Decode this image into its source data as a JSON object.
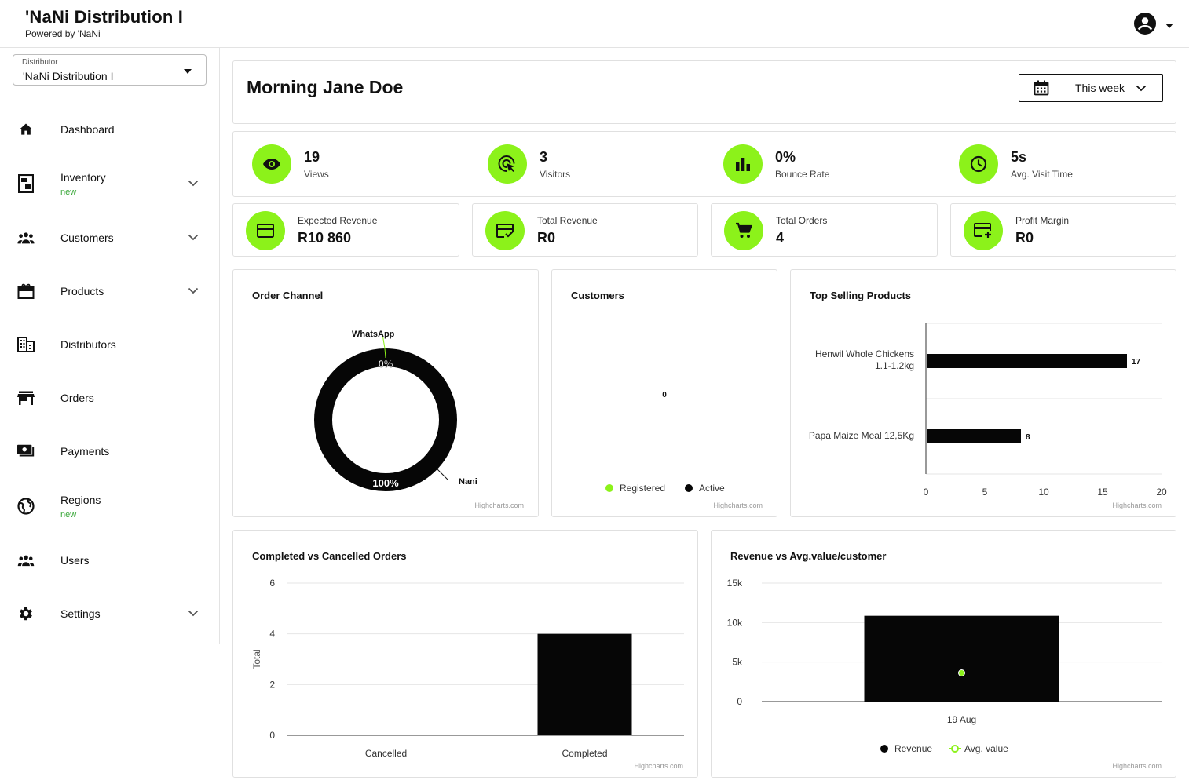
{
  "app": {
    "title": "'NaNi Distribution I",
    "subtitle": "Powered by 'NaNi"
  },
  "account": {
    "icon": "account-circle-icon"
  },
  "sidebar": {
    "distributor_label": "Distributor",
    "distributor_value": "'NaNi Distribution I",
    "items": [
      {
        "label": "Dashboard",
        "icon": "home-icon",
        "expandable": false,
        "badge": ""
      },
      {
        "label": "Inventory",
        "icon": "inventory-icon",
        "expandable": true,
        "badge": "new"
      },
      {
        "label": "Customers",
        "icon": "customers-icon",
        "expandable": true,
        "badge": ""
      },
      {
        "label": "Products",
        "icon": "products-icon",
        "expandable": true,
        "badge": ""
      },
      {
        "label": "Distributors",
        "icon": "building-icon",
        "expandable": false,
        "badge": ""
      },
      {
        "label": "Orders",
        "icon": "store-icon",
        "expandable": false,
        "badge": ""
      },
      {
        "label": "Payments",
        "icon": "payments-icon",
        "expandable": false,
        "badge": ""
      },
      {
        "label": "Regions",
        "icon": "globe-icon",
        "expandable": false,
        "badge": "new"
      },
      {
        "label": "Users",
        "icon": "users-icon",
        "expandable": false,
        "badge": ""
      },
      {
        "label": "Settings",
        "icon": "gear-icon",
        "expandable": true,
        "badge": ""
      }
    ]
  },
  "header": {
    "greeting": "Morning Jane Doe",
    "period": "This week"
  },
  "stats": [
    {
      "value": "19",
      "label": "Views",
      "icon": "eye-icon"
    },
    {
      "value": "3",
      "label": "Visitors",
      "icon": "cursor-click-icon"
    },
    {
      "value": "0%",
      "label": "Bounce Rate",
      "icon": "bar-chart-icon"
    },
    {
      "value": "5s",
      "label": "Avg. Visit Time",
      "icon": "clock-icon"
    }
  ],
  "kpis": [
    {
      "label": "Expected Revenue",
      "value": "R10 860",
      "icon": "credit-card-icon"
    },
    {
      "label": "Total Revenue",
      "value": "R0",
      "icon": "card-check-icon"
    },
    {
      "label": "Total Orders",
      "value": "4",
      "icon": "cart-icon"
    },
    {
      "label": "Profit Margin",
      "value": "R0",
      "icon": "card-plus-icon"
    }
  ],
  "credit": "Highcharts.com",
  "colors": {
    "accent": "#8cf21a",
    "bar": "#060606"
  },
  "chart_data": [
    {
      "id": "order_channel",
      "type": "pie",
      "title": "Order Channel",
      "slices": [
        {
          "name": "WhatsApp",
          "value": 0,
          "label": "0%"
        },
        {
          "name": "Nani",
          "value": 100,
          "label": "100%"
        }
      ]
    },
    {
      "id": "customers",
      "type": "pie",
      "title": "Customers",
      "data_label": "0",
      "legend": [
        "Registered",
        "Active"
      ],
      "legend_placement": "bottom"
    },
    {
      "id": "top_selling",
      "type": "bar",
      "title": "Top Selling Products",
      "categories": [
        "Henwil Whole Chickens 1.1-1.2kg",
        "Papa Maize Meal 12,5Kg"
      ],
      "values": [
        17,
        8
      ],
      "xlim": [
        0,
        20
      ],
      "ticks": [
        "0",
        "5",
        "10",
        "15",
        "20"
      ]
    },
    {
      "id": "completed_vs_cancelled",
      "type": "bar",
      "title": "Completed vs Cancelled Orders",
      "categories": [
        "Cancelled",
        "Completed"
      ],
      "values": [
        0,
        4
      ],
      "ylabel": "Total",
      "ylim": [
        0,
        6
      ],
      "ticks": [
        "0",
        "2",
        "4",
        "6"
      ]
    },
    {
      "id": "revenue_vs_avg",
      "type": "bar",
      "title": "Revenue vs Avg.value/customer",
      "categories": [
        "19 Aug"
      ],
      "series": [
        {
          "name": "Revenue",
          "values": [
            10860
          ]
        },
        {
          "name": "Avg. value",
          "values": [
            3620
          ]
        }
      ],
      "ylim": [
        0,
        15000
      ],
      "ticks": [
        "0",
        "5k",
        "10k",
        "15k"
      ],
      "legend_placement": "bottom"
    }
  ]
}
